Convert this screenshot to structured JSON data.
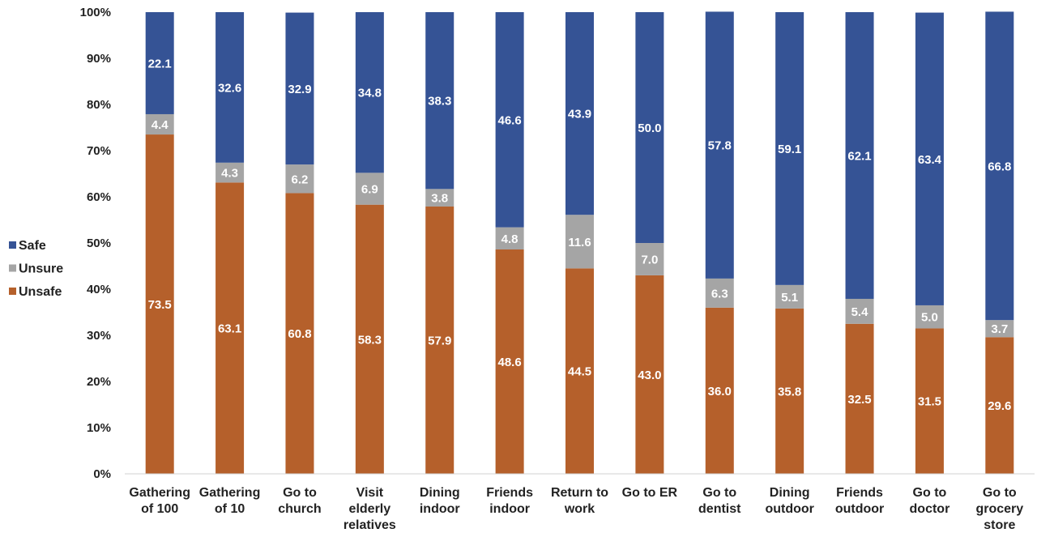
{
  "chart_data": {
    "type": "bar",
    "stacked": true,
    "categories": [
      [
        "Gathering",
        "of 100"
      ],
      [
        "Gathering",
        "of 10"
      ],
      [
        "Go to",
        "church"
      ],
      [
        "Visit",
        "elderly",
        "relatives"
      ],
      [
        "Dining",
        "indoor"
      ],
      [
        "Friends",
        "indoor"
      ],
      [
        "Return to",
        "work"
      ],
      [
        "Go to ER"
      ],
      [
        "Go to",
        "dentist"
      ],
      [
        "Dining",
        "outdoor"
      ],
      [
        "Friends",
        "outdoor"
      ],
      [
        "Go to",
        "doctor"
      ],
      [
        "Go to",
        "grocery",
        "store"
      ]
    ],
    "series": [
      {
        "name": "Unsafe",
        "color": "#B5602B",
        "values": [
          73.5,
          63.1,
          60.8,
          58.3,
          57.9,
          48.6,
          44.5,
          43.0,
          36.0,
          35.8,
          32.5,
          31.5,
          29.6
        ],
        "labels": [
          "73.5",
          "63.1",
          "60.8",
          "58.3",
          "57.9",
          "48.6",
          "44.5",
          "43.0",
          "36.0",
          "35.8",
          "32.5",
          "31.5",
          "29.6"
        ]
      },
      {
        "name": "Unsure",
        "color": "#A5A5A5",
        "values": [
          4.4,
          4.3,
          6.2,
          6.9,
          3.8,
          4.8,
          11.6,
          7.0,
          6.3,
          5.1,
          5.4,
          5.0,
          3.7
        ],
        "labels": [
          "4.4",
          "4.3",
          "6.2",
          "6.9",
          "3.8",
          "4.8",
          "11.6",
          "7.0",
          "6.3",
          "5.1",
          "5.4",
          "5.0",
          "3.7"
        ]
      },
      {
        "name": "Safe",
        "color": "#355395",
        "values": [
          22.1,
          32.6,
          32.9,
          34.8,
          38.3,
          46.6,
          43.9,
          50.0,
          57.8,
          59.1,
          62.1,
          63.4,
          66.8
        ],
        "labels": [
          "22.1",
          "32.6",
          "32.9",
          "34.8",
          "38.3",
          "46.6",
          "43.9",
          "50.0",
          "57.8",
          "59.1",
          "62.1",
          "63.4",
          "66.8"
        ]
      }
    ],
    "ylim": [
      0,
      100
    ],
    "yticks": [
      "0%",
      "10%",
      "20%",
      "30%",
      "40%",
      "50%",
      "60%",
      "70%",
      "80%",
      "90%",
      "100%"
    ],
    "legend": {
      "position": "left",
      "order": [
        "Safe",
        "Unsure",
        "Unsafe"
      ]
    },
    "grid": false,
    "title": "",
    "xlabel": "",
    "ylabel": ""
  }
}
